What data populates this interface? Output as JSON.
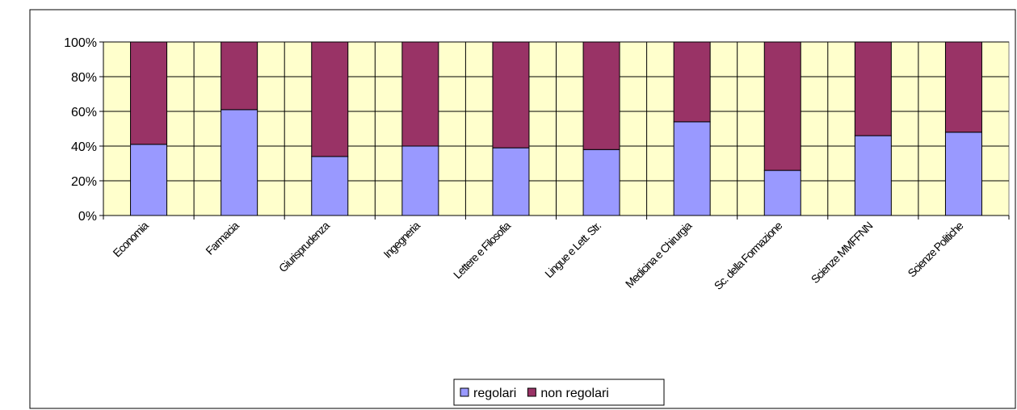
{
  "chart_data": {
    "type": "bar",
    "stacked": true,
    "percent": true,
    "categories": [
      "Economia",
      "Farmacia",
      "Giurisprudenza",
      "Ingegneria",
      "Lettere e Filosofia",
      "Lingue e Lett. Str.",
      "Medicina e Chirurgia",
      "Sc. della Formazione",
      "Scienze MMFFNN",
      "Scienze Politiche"
    ],
    "series": [
      {
        "name": "regolari",
        "color": "#9999ff",
        "values": [
          41,
          61,
          34,
          40,
          39,
          38,
          54,
          26,
          46,
          48
        ]
      },
      {
        "name": "non regolari",
        "color": "#993366",
        "values": [
          59,
          39,
          66,
          60,
          61,
          62,
          46,
          74,
          54,
          52
        ]
      }
    ],
    "ylim": [
      0,
      100
    ],
    "yticks": [
      "0%",
      "20%",
      "40%",
      "60%",
      "80%",
      "100%"
    ],
    "grid": true,
    "plot_background": "#ffffcc",
    "legend_position": "bottom"
  }
}
